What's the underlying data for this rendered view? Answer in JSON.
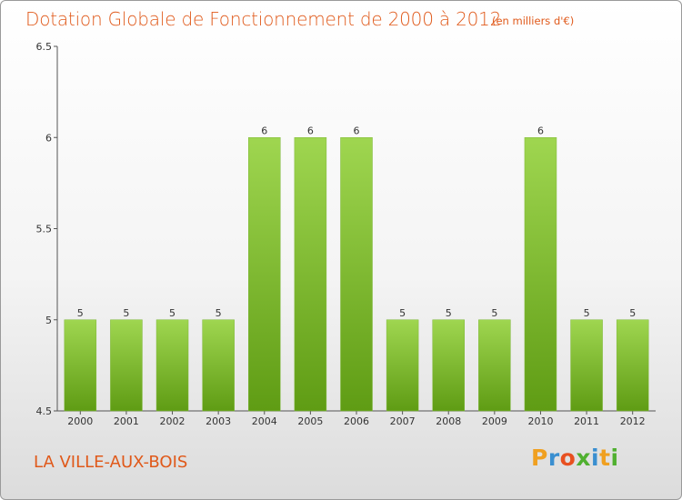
{
  "title": "Dotation Globale de Fonctionnement de 2000 à 2012",
  "unit_note": "(en milliers d'€)",
  "commune": "LA VILLE-AUX-BOIS",
  "logo": {
    "letters": [
      "P",
      "r",
      "o",
      "x",
      "i",
      "t",
      "i"
    ],
    "colors": [
      "#f0a020",
      "#3a8fd0",
      "#e85020",
      "#50b030",
      "#3a8fd0",
      "#f0a020",
      "#50b030"
    ]
  },
  "colors": {
    "text_accent": "#e0591a",
    "bar_light": "#9fd650",
    "bar_dark": "#5f9c14"
  },
  "chart_data": {
    "type": "bar",
    "categories": [
      "2000",
      "2001",
      "2002",
      "2003",
      "2004",
      "2005",
      "2006",
      "2007",
      "2008",
      "2009",
      "2010",
      "2011",
      "2012"
    ],
    "values": [
      5,
      5,
      5,
      5,
      6,
      6,
      6,
      5,
      5,
      5,
      6,
      5,
      5
    ],
    "data_labels": [
      "5",
      "5",
      "5",
      "5",
      "6",
      "6",
      "6",
      "5",
      "5",
      "5",
      "6",
      "5",
      "5"
    ],
    "ylim": [
      4.5,
      6.5
    ],
    "yticks": [
      4.5,
      5,
      5.5,
      6,
      6.5
    ],
    "ytick_labels": [
      "4.5",
      "5",
      "5.5",
      "6",
      "6.5"
    ],
    "xlabel": "",
    "ylabel": "",
    "grid": false,
    "legend": "none"
  }
}
